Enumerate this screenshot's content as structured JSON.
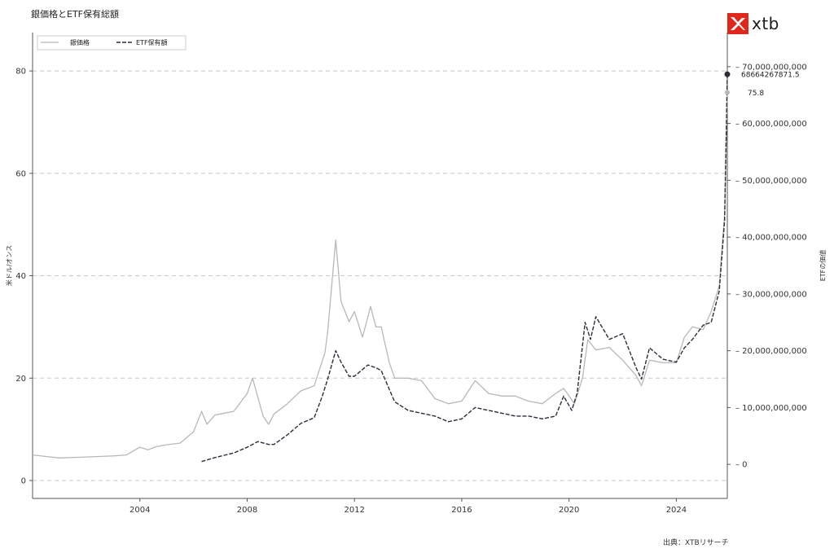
{
  "header": {
    "title": "銀価格とETF保有総額",
    "logo_text": "xtb",
    "brand_color": "#e1261c"
  },
  "footer": {
    "source": "出典：XTBリサーチ"
  },
  "chart_data": {
    "type": "line",
    "title": "銀価格とETF保有総額",
    "ylabel_left": "米ドル/オンス",
    "ylabel_right": "ETFの価値",
    "xlim": [
      2000.0,
      2025.9
    ],
    "ylim_left": [
      -3.5,
      87.5
    ],
    "ylim_right": [
      -6000000000,
      76000000000
    ],
    "x_ticks": [
      2004,
      2008,
      2012,
      2016,
      2020,
      2024
    ],
    "y_ticks_left": [
      0,
      20,
      40,
      60,
      80
    ],
    "y_ticks_right": [
      {
        "value": 0,
        "label": "0"
      },
      {
        "value": 10000000000,
        "label": "10,000,000,000"
      },
      {
        "value": 20000000000,
        "label": "20,000,000,000"
      },
      {
        "value": 30000000000,
        "label": "30,000,000,000"
      },
      {
        "value": 40000000000,
        "label": "40,000,000,000"
      },
      {
        "value": 50000000000,
        "label": "50,000,000,000"
      },
      {
        "value": 60000000000,
        "label": "60,000,000,000"
      },
      {
        "value": 70000000000,
        "label": "70,000,000,000"
      }
    ],
    "grid": "horizontal dashed",
    "legend_position": "top-left",
    "series": [
      {
        "name": "銀価格",
        "axis": "left",
        "color": "#b8b8b8",
        "style": "solid",
        "x": [
          2000.0,
          2001.0,
          2002.0,
          2003.0,
          2003.5,
          2004.0,
          2004.3,
          2004.6,
          2005.0,
          2005.5,
          2006.0,
          2006.3,
          2006.5,
          2006.8,
          2007.0,
          2007.5,
          2008.0,
          2008.2,
          2008.6,
          2008.8,
          2009.0,
          2009.5,
          2010.0,
          2010.5,
          2010.9,
          2011.0,
          2011.3,
          2011.5,
          2011.8,
          2012.0,
          2012.3,
          2012.6,
          2012.8,
          2013.0,
          2013.3,
          2013.5,
          2014.0,
          2014.5,
          2015.0,
          2015.5,
          2016.0,
          2016.5,
          2017.0,
          2017.5,
          2018.0,
          2018.5,
          2019.0,
          2019.5,
          2019.8,
          2020.2,
          2020.5,
          2020.7,
          2021.0,
          2021.5,
          2022.0,
          2022.5,
          2022.7,
          2023.0,
          2023.5,
          2024.0,
          2024.3,
          2024.6,
          2025.0,
          2025.3,
          2025.6,
          2025.8,
          2025.9
        ],
        "values": [
          5.0,
          4.4,
          4.6,
          4.8,
          5.0,
          6.5,
          6.0,
          6.6,
          7.0,
          7.3,
          9.5,
          13.5,
          11.0,
          12.8,
          13.0,
          13.5,
          17.0,
          20.0,
          12.5,
          11.0,
          13.0,
          15.0,
          17.5,
          18.5,
          25.0,
          29.0,
          47.0,
          35.0,
          31.0,
          33.0,
          28.0,
          34.0,
          30.0,
          30.0,
          23.0,
          20.0,
          20.0,
          19.5,
          16.0,
          15.0,
          15.5,
          19.5,
          17.0,
          16.5,
          16.5,
          15.5,
          15.0,
          17.0,
          18.0,
          15.0,
          20.0,
          27.5,
          25.5,
          26.0,
          23.5,
          20.5,
          18.5,
          23.5,
          23.0,
          23.0,
          28.0,
          30.0,
          29.5,
          33.0,
          38.0,
          52.0,
          75.8
        ]
      },
      {
        "name": "ETF保有額",
        "axis": "right",
        "color": "#2b2d3b",
        "style": "dashed",
        "x": [
          2006.3,
          2006.8,
          2007.5,
          2008.0,
          2008.4,
          2008.8,
          2009.0,
          2009.5,
          2010.0,
          2010.5,
          2010.8,
          2011.0,
          2011.3,
          2011.5,
          2011.8,
          2012.0,
          2012.5,
          2012.8,
          2013.0,
          2013.5,
          2014.0,
          2014.5,
          2015.0,
          2015.5,
          2016.0,
          2016.5,
          2017.0,
          2017.5,
          2018.0,
          2018.5,
          2019.0,
          2019.5,
          2019.8,
          2020.1,
          2020.3,
          2020.6,
          2020.8,
          2021.0,
          2021.5,
          2022.0,
          2022.5,
          2022.7,
          2023.0,
          2023.5,
          2024.0,
          2024.3,
          2024.6,
          2025.0,
          2025.3,
          2025.6,
          2025.8,
          2025.9
        ],
        "values": [
          500000000,
          1200000000,
          2000000000,
          3000000000,
          4000000000,
          3500000000,
          3500000000,
          5200000000,
          7200000000,
          8200000000,
          12000000000,
          15000000000,
          20000000000,
          18000000000,
          15500000000,
          15500000000,
          17500000000,
          17000000000,
          16500000000,
          11000000000,
          9500000000,
          9000000000,
          8500000000,
          7500000000,
          8000000000,
          10000000000,
          9500000000,
          9000000000,
          8500000000,
          8500000000,
          8000000000,
          8500000000,
          12000000000,
          9500000000,
          12500000000,
          25000000000,
          22000000000,
          26000000000,
          22000000000,
          23000000000,
          17000000000,
          15000000000,
          20500000000,
          18500000000,
          18000000000,
          20500000000,
          22000000000,
          24500000000,
          25000000000,
          30500000000,
          43000000000,
          68664267871.5
        ]
      }
    ],
    "annotations": [
      {
        "text": "68664267871.5",
        "series": "ETF保有額"
      },
      {
        "text": "75.8",
        "series": "銀価格"
      }
    ]
  }
}
